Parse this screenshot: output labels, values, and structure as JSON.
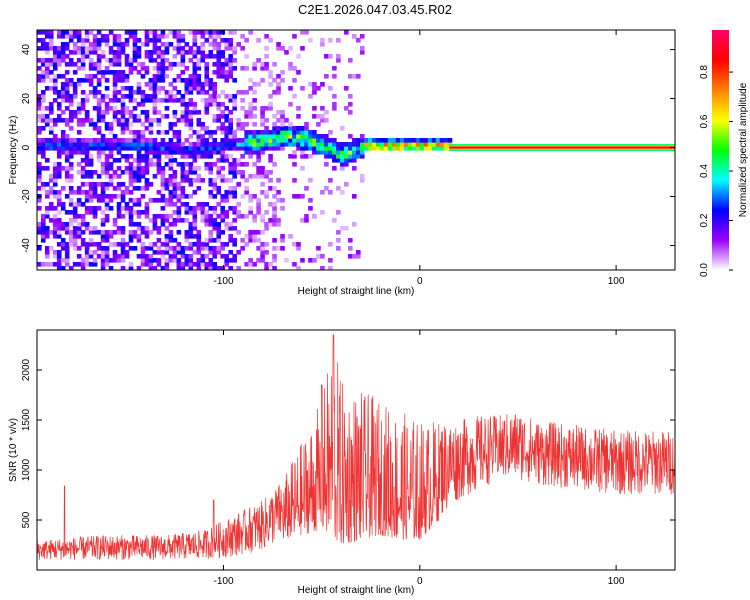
{
  "page_title": "C2E1.2026.047.03.45.R02",
  "chart_data": [
    {
      "type": "heatmap",
      "title": "C2E1.2026.047.03.45.R02",
      "xlabel": "Height of straight line (km)",
      "ylabel": "Frequency (Hz)",
      "xlim": [
        -195,
        130
      ],
      "ylim": [
        -50,
        48
      ],
      "x_ticks": [
        -100,
        0,
        100
      ],
      "x_tick_labels": [
        "-100",
        "0",
        "100"
      ],
      "y_ticks": [
        -40,
        -20,
        0,
        20,
        40
      ],
      "y_tick_labels": [
        "-40",
        "-20",
        "0",
        "20",
        "40"
      ],
      "colorbar": {
        "label": "Normalized spectral amplitude",
        "range": [
          0,
          0.97
        ],
        "ticks": [
          0.0,
          0.2,
          0.4,
          0.6,
          0.8
        ],
        "tick_labels": [
          "0.0",
          "0.2",
          "0.4",
          "0.6",
          "0.8"
        ],
        "colors": [
          "#ffffff",
          "#9900ff",
          "#0000ff",
          "#00ffff",
          "#00ff00",
          "#ffff00",
          "#ff8000",
          "#ff0000",
          "#ff0066"
        ]
      },
      "features": {
        "carrier_line": {
          "start_x": 15,
          "end_x": 130,
          "frequency": 0,
          "amplitude": 0.9
        },
        "noise_region_x": [
          -195,
          -30
        ],
        "signal_path": [
          [
            -185,
            0
          ],
          [
            -170,
            0
          ],
          [
            -160,
            0
          ],
          [
            -140,
            0
          ],
          [
            -120,
            -2
          ],
          [
            -100,
            0
          ],
          [
            -90,
            1
          ],
          [
            -80,
            2
          ],
          [
            -70,
            4
          ],
          [
            -60,
            3
          ],
          [
            -50,
            0
          ],
          [
            -40,
            -4
          ],
          [
            -30,
            0
          ],
          [
            -20,
            0
          ],
          [
            -10,
            0
          ],
          [
            0,
            0
          ],
          [
            10,
            0
          ]
        ]
      }
    },
    {
      "type": "line",
      "xlabel": "Height of straight line (km)",
      "ylabel": "SNR (10 * v/v)",
      "xlim": [
        -195,
        130
      ],
      "ylim": [
        0,
        2400
      ],
      "x_ticks": [
        -100,
        0,
        100
      ],
      "x_tick_labels": [
        "-100",
        "0",
        "100"
      ],
      "y_ticks": [
        500,
        1000,
        1500,
        2000
      ],
      "y_tick_labels": [
        "500",
        "1000",
        "1500",
        "2000"
      ],
      "series": [
        {
          "name": "SNR",
          "color": "#ee3333",
          "envelope_x": [
            -195,
            -160,
            -130,
            -110,
            -100,
            -90,
            -80,
            -70,
            -60,
            -50,
            -44,
            -40,
            -30,
            -20,
            -10,
            0,
            10,
            20,
            30,
            40,
            50,
            60,
            80,
            100,
            130
          ],
          "envelope_low": [
            100,
            100,
            100,
            110,
            120,
            150,
            200,
            300,
            350,
            400,
            300,
            250,
            300,
            350,
            300,
            300,
            500,
            700,
            800,
            900,
            900,
            850,
            800,
            750,
            750
          ],
          "envelope_high": [
            300,
            350,
            350,
            400,
            500,
            600,
            700,
            900,
            1300,
            1700,
            2350,
            1900,
            1800,
            1700,
            1600,
            1500,
            1500,
            1500,
            1550,
            1550,
            1600,
            1500,
            1450,
            1400,
            1400
          ],
          "spikes": [
            [
              -181,
              840
            ],
            [
              -105,
              700
            ],
            [
              -44,
              2350
            ],
            [
              -50,
              1850
            ]
          ]
        }
      ]
    }
  ]
}
